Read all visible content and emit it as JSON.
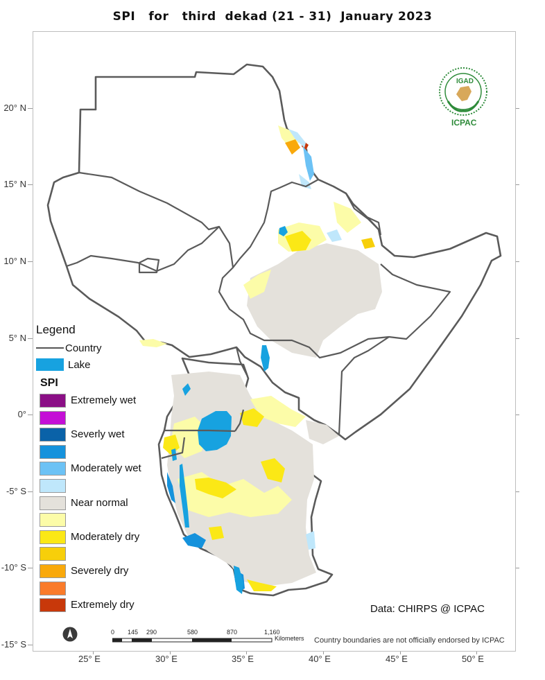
{
  "title": "SPI   for   third  dekad (21 - 31)  January 2023",
  "latitude_labels": [
    "20° N",
    "15° N",
    "10° N",
    "5° N",
    "0°",
    "-5° S",
    "-10° S",
    "-15° S"
  ],
  "longitude_labels": [
    "25° E",
    "30° E",
    "35° E",
    "40° E",
    "45° E",
    "50° E"
  ],
  "legend": {
    "heading": "Legend",
    "country_label": "Country",
    "lake_label": "Lake",
    "spi_heading": "SPI",
    "lake_color": "#17a2e0",
    "country_color": "#555555",
    "classes": [
      {
        "label": "Extremely wet",
        "color": "#8b0f86"
      },
      {
        "label": "",
        "color": "#c40fd6"
      },
      {
        "label": "Severly wet",
        "color": "#0a62a8"
      },
      {
        "label": "",
        "color": "#1592dc"
      },
      {
        "label": "Moderately wet",
        "color": "#6cc2f5"
      },
      {
        "label": "",
        "color": "#bfe7fb"
      },
      {
        "label": "Near normal",
        "color": "#e4e1db"
      },
      {
        "label": "",
        "color": "#fcfca8"
      },
      {
        "label": "Moderately dry",
        "color": "#fbe816"
      },
      {
        "label": "",
        "color": "#f7cf0a"
      },
      {
        "label": "Severely dry",
        "color": "#f9a90b"
      },
      {
        "label": "",
        "color": "#fa7b2a"
      },
      {
        "label": "Extremely dry",
        "color": "#c8380a"
      }
    ]
  },
  "credit": "Data: CHIRPS @ ICPAC",
  "disclaimer": "Country boundaries are not officially endorsed by ICPAC",
  "scale_bar": {
    "ticks": [
      "0",
      "145",
      "290",
      "580",
      "870",
      "1,160"
    ],
    "unit": "Kilometers"
  },
  "logo": {
    "top_text": "IGAD",
    "bottom_text": "ICPAC"
  }
}
